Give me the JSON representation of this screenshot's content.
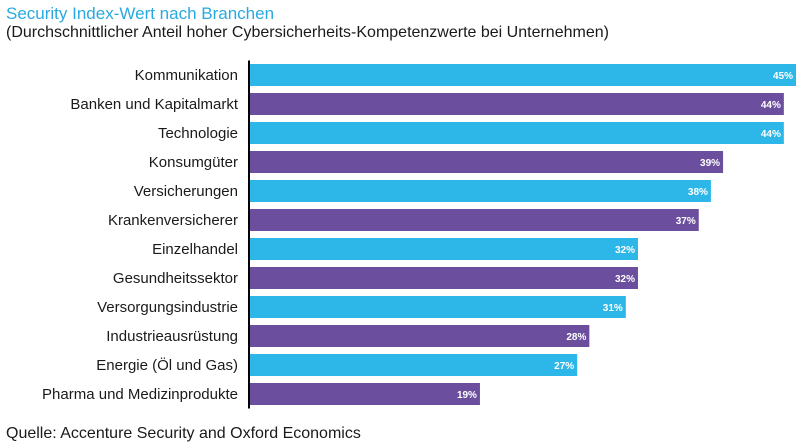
{
  "chart_data": {
    "type": "bar",
    "orientation": "horizontal",
    "title": "Security Index-Wert nach Branchen",
    "subtitle": "(Durchschnittlicher Anteil hoher Cybersicherheits-Kompetenzwerte bei Unternehmen)",
    "source": "Quelle: Accenture Security and Oxford Economics",
    "categories": [
      "Kommunikation",
      "Banken und Kapitalmarkt",
      "Technologie",
      "Konsumgüter",
      "Versicherungen",
      "Krankenversicherer",
      "Einzelhandel",
      "Gesundheitssektor",
      "Versorgungsindustrie",
      "Industrieausrüstung",
      "Energie (Öl und Gas)",
      "Pharma und Medizinprodukte"
    ],
    "values": [
      45,
      44,
      44,
      39,
      38,
      37,
      32,
      32,
      31,
      28,
      27,
      19
    ],
    "value_labels": [
      "45%",
      "44%",
      "44%",
      "39%",
      "38%",
      "37%",
      "32%",
      "32%",
      "31%",
      "28%",
      "27%",
      "19%"
    ],
    "bar_colors": [
      "#2db6e8",
      "#6b4f9e",
      "#2db6e8",
      "#6b4f9e",
      "#2db6e8",
      "#6b4f9e",
      "#2db6e8",
      "#6b4f9e",
      "#2db6e8",
      "#6b4f9e",
      "#2db6e8",
      "#6b4f9e"
    ],
    "xlim": [
      0,
      45
    ],
    "xlabel": "",
    "ylabel": "",
    "grid": false,
    "legend": "none"
  },
  "colors": {
    "title": "#2aa9e0",
    "text": "#1a1a1a",
    "axis": "#000000"
  }
}
